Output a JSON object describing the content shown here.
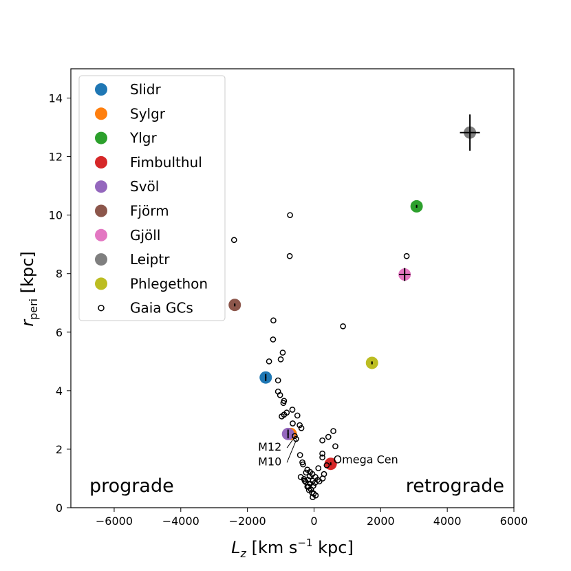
{
  "chart_data": {
    "type": "scatter",
    "xlabel": "L_z [km s⁻¹ kpc]",
    "ylabel": "r_peri [kpc]",
    "xlim": [
      -7300,
      6000
    ],
    "ylim": [
      0,
      15
    ],
    "x_ticks": [
      -6000,
      -4000,
      -2000,
      0,
      2000,
      4000,
      6000
    ],
    "y_ticks": [
      0,
      2,
      4,
      6,
      8,
      10,
      12,
      14
    ],
    "grid": false,
    "legend_position": "top-left",
    "region_labels": {
      "left": "prograde",
      "right": "retrograde"
    },
    "streams": [
      {
        "name": "Slidr",
        "color": "#1f77b4",
        "x": -1450,
        "y": 4.45,
        "xerr": 20,
        "yerr": 0.12
      },
      {
        "name": "Sylgr",
        "color": "#ff7f0e",
        "x": -700,
        "y": 2.52,
        "xerr": 20,
        "yerr": 0.1
      },
      {
        "name": "Ylgr",
        "color": "#2ca02c",
        "x": 3080,
        "y": 10.3,
        "xerr": 20,
        "yerr": 0.05
      },
      {
        "name": "Fimbulthul",
        "color": "#d62728",
        "x": 500,
        "y": 1.5,
        "xerr": 20,
        "yerr": 0.05
      },
      {
        "name": "Svöl",
        "color": "#9467bd",
        "x": -780,
        "y": 2.52,
        "xerr": 20,
        "yerr": 0.15
      },
      {
        "name": "Fjörm",
        "color": "#8c564b",
        "x": -2380,
        "y": 6.93,
        "xerr": 20,
        "yerr": 0.05
      },
      {
        "name": "Gjöll",
        "color": "#e377c2",
        "x": 2720,
        "y": 7.97,
        "xerr": 170,
        "yerr": 0.22
      },
      {
        "name": "Leiptr",
        "color": "#7f7f7f",
        "x": 4680,
        "y": 12.82,
        "xerr": 300,
        "yerr": 0.62
      },
      {
        "name": "Phlegethon",
        "color": "#bcbd22",
        "x": 1740,
        "y": 4.95,
        "xerr": 20,
        "yerr": 0.05
      }
    ],
    "gc_series": {
      "name": "Gaia GCs",
      "points": [
        [
          -720,
          10.0
        ],
        [
          -2400,
          9.15
        ],
        [
          -730,
          8.6
        ],
        [
          2780,
          8.6
        ],
        [
          870,
          6.2
        ],
        [
          -1220,
          6.4
        ],
        [
          -1230,
          5.75
        ],
        [
          -940,
          5.3
        ],
        [
          -1000,
          5.07
        ],
        [
          -1350,
          5.0
        ],
        [
          -1080,
          4.35
        ],
        [
          -1080,
          3.97
        ],
        [
          -1020,
          3.85
        ],
        [
          -900,
          3.65
        ],
        [
          -920,
          3.58
        ],
        [
          -820,
          3.25
        ],
        [
          -650,
          3.35
        ],
        [
          -500,
          3.15
        ],
        [
          -970,
          3.12
        ],
        [
          -900,
          3.18
        ],
        [
          -430,
          2.82
        ],
        [
          -380,
          2.72
        ],
        [
          580,
          2.62
        ],
        [
          430,
          2.42
        ],
        [
          250,
          2.3
        ],
        [
          640,
          2.1
        ],
        [
          -640,
          2.88
        ],
        [
          -580,
          2.45
        ],
        [
          -540,
          2.35
        ],
        [
          250,
          1.85
        ],
        [
          250,
          1.72
        ],
        [
          -420,
          1.8
        ],
        [
          -350,
          1.55
        ],
        [
          -330,
          1.48
        ],
        [
          -200,
          1.3
        ],
        [
          -120,
          1.22
        ],
        [
          -240,
          1.2
        ],
        [
          -50,
          1.15
        ],
        [
          -130,
          1.08
        ],
        [
          40,
          1.05
        ],
        [
          -400,
          1.05
        ],
        [
          -300,
          0.98
        ],
        [
          -180,
          0.95
        ],
        [
          -40,
          0.92
        ],
        [
          110,
          0.95
        ],
        [
          160,
          0.9
        ],
        [
          260,
          1.0
        ],
        [
          300,
          1.15
        ],
        [
          130,
          1.35
        ],
        [
          380,
          1.45
        ],
        [
          -250,
          0.88
        ],
        [
          -120,
          0.82
        ],
        [
          -20,
          0.75
        ],
        [
          -170,
          0.72
        ],
        [
          -90,
          0.62
        ],
        [
          -150,
          0.6
        ],
        [
          -60,
          0.52
        ],
        [
          -10,
          0.48
        ],
        [
          50,
          0.42
        ],
        [
          -40,
          0.36
        ],
        [
          -200,
          0.72
        ],
        [
          30,
          0.85
        ],
        [
          -280,
          0.92
        ]
      ]
    },
    "annotations": [
      {
        "text": "M12",
        "label_x": -1680,
        "label_y": 1.95,
        "target_x": -560,
        "target_y": 2.45
      },
      {
        "text": "M10",
        "label_x": -1680,
        "label_y": 1.45,
        "target_x": -520,
        "target_y": 2.35
      },
      {
        "text": "Omega Cen",
        "label_x": 580,
        "label_y": 1.52,
        "target_x": 500,
        "target_y": 1.5
      }
    ]
  }
}
